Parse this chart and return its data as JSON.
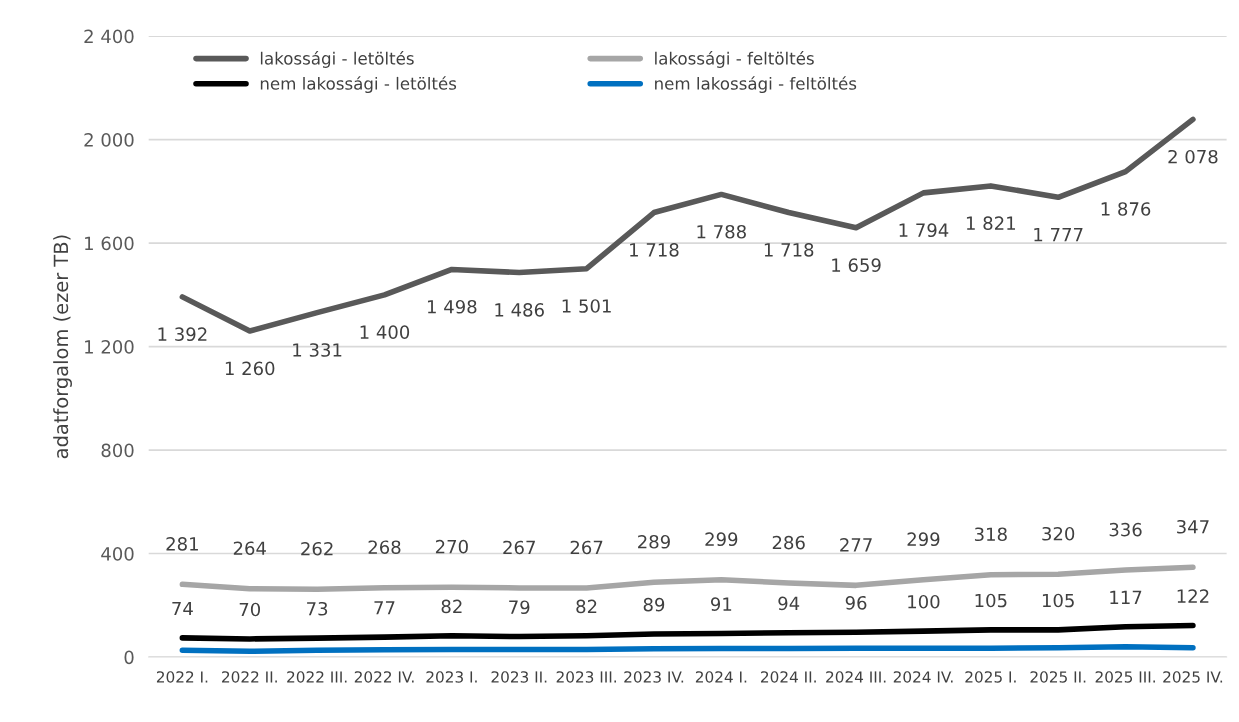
{
  "chart_data": {
    "type": "line",
    "ylabel": "adatforgalom (ezer TB)",
    "categories": [
      "2022 I.",
      "2022 II.",
      "2022 III.",
      "2022 IV.",
      "2023 I.",
      "2023 II.",
      "2023 III.",
      "2023 IV.",
      "2024 I.",
      "2024 II.",
      "2024 III.",
      "2024 IV.",
      "2025 I.",
      "2025 II.",
      "2025 III.",
      "2025 IV."
    ],
    "series": [
      {
        "name": "lakossági - letöltés",
        "color": "#595959",
        "values": [
          1392,
          1260,
          1331,
          1400,
          1498,
          1486,
          1501,
          1718,
          1788,
          1718,
          1659,
          1794,
          1821,
          1777,
          1876,
          2078
        ],
        "value_labels": [
          "1 392",
          "1 260",
          "1 331",
          "1 400",
          "1 498",
          "1 486",
          "1 501",
          "1 718",
          "1 788",
          "1 718",
          "1 659",
          "1 794",
          "1 821",
          "1 777",
          "1 876",
          "2 078"
        ]
      },
      {
        "name": "lakossági - feltöltés",
        "color": "#a6a6a6",
        "values": [
          281,
          264,
          262,
          268,
          270,
          267,
          267,
          289,
          299,
          286,
          277,
          299,
          318,
          320,
          336,
          347
        ],
        "value_labels": [
          "281",
          "264",
          "262",
          "268",
          "270",
          "267",
          "267",
          "289",
          "299",
          "286",
          "277",
          "299",
          "318",
          "320",
          "336",
          "347"
        ]
      },
      {
        "name": "nem lakossági - letöltés",
        "color": "#000000",
        "values": [
          74,
          70,
          73,
          77,
          82,
          79,
          82,
          89,
          91,
          94,
          96,
          100,
          105,
          105,
          117,
          122
        ],
        "value_labels": [
          "74",
          "70",
          "73",
          "77",
          "82",
          "79",
          "82",
          "89",
          "91",
          "94",
          "96",
          "100",
          "105",
          "105",
          "117",
          "122"
        ]
      },
      {
        "name": "nem lakossági - feltöltés",
        "color": "#0070c0",
        "values": [
          26,
          22,
          26,
          28,
          29,
          29,
          29,
          32,
          33,
          33,
          34,
          34,
          34,
          36,
          40,
          36
        ]
      }
    ],
    "ylim": [
      0,
      2400
    ],
    "yticks": [
      {
        "value": 0,
        "label": "0"
      },
      {
        "value": 400,
        "label": "400"
      },
      {
        "value": 800,
        "label": "800"
      },
      {
        "value": 1200,
        "label": "1 200"
      },
      {
        "value": 1600,
        "label": "1 600"
      },
      {
        "value": 2000,
        "label": "2 000"
      },
      {
        "value": 2400,
        "label": "2 400"
      }
    ],
    "grid": "y",
    "legend": "top left",
    "marker": "none",
    "line_style": "solid"
  }
}
